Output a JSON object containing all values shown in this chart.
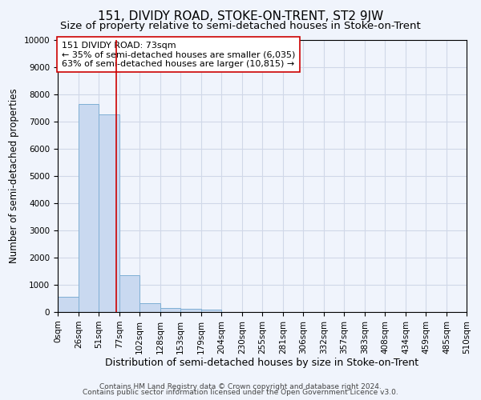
{
  "title": "151, DIVIDY ROAD, STOKE-ON-TRENT, ST2 9JW",
  "subtitle": "Size of property relative to semi-detached houses in Stoke-on-Trent",
  "xlabel": "Distribution of semi-detached houses by size in Stoke-on-Trent",
  "ylabel": "Number of semi-detached properties",
  "footer_line1": "Contains HM Land Registry data © Crown copyright and database right 2024.",
  "footer_line2": "Contains public sector information licensed under the Open Government Licence v3.0.",
  "annotation_title": "151 DIVIDY ROAD: 73sqm",
  "annotation_line1": "← 35% of semi-detached houses are smaller (6,035)",
  "annotation_line2": "63% of semi-detached houses are larger (10,815) →",
  "property_size": 73,
  "bin_edges": [
    0,
    26,
    51,
    77,
    102,
    128,
    153,
    179,
    204,
    230,
    255,
    281,
    306,
    332,
    357,
    383,
    408,
    434,
    459,
    485,
    510
  ],
  "bar_heights": [
    550,
    7650,
    7250,
    1350,
    330,
    160,
    110,
    80,
    0,
    0,
    0,
    0,
    0,
    0,
    0,
    0,
    0,
    0,
    0,
    0
  ],
  "bar_color": "#c9d9f0",
  "bar_edge_color": "#7fafd4",
  "vline_color": "#cc0000",
  "grid_color": "#d0d8e8",
  "background_color": "#f0f4fc",
  "ylim": [
    0,
    10000
  ],
  "yticks": [
    0,
    1000,
    2000,
    3000,
    4000,
    5000,
    6000,
    7000,
    8000,
    9000,
    10000
  ],
  "tick_labels": [
    "0sqm",
    "26sqm",
    "51sqm",
    "77sqm",
    "102sqm",
    "128sqm",
    "153sqm",
    "179sqm",
    "204sqm",
    "230sqm",
    "255sqm",
    "281sqm",
    "306sqm",
    "332sqm",
    "357sqm",
    "383sqm",
    "408sqm",
    "434sqm",
    "459sqm",
    "485sqm",
    "510sqm"
  ],
  "annotation_box_color": "#ffffff",
  "annotation_box_edge": "#cc0000",
  "title_fontsize": 11,
  "subtitle_fontsize": 9.5,
  "xlabel_fontsize": 9,
  "ylabel_fontsize": 8.5,
  "tick_fontsize": 7.5,
  "annotation_fontsize": 8,
  "footer_fontsize": 6.5
}
